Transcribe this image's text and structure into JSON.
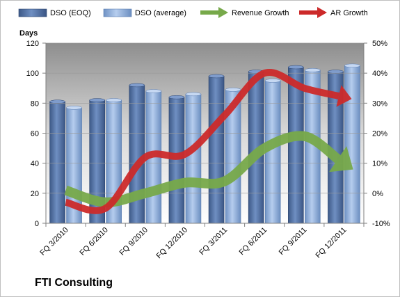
{
  "company": "FTI Consulting",
  "chart_data": {
    "type": "bar",
    "left_axis_title": "Days",
    "categories": [
      "FQ 3/2010",
      "FQ 6/2010",
      "FQ 9/2010",
      "FQ 12/2010",
      "FQ 3/2011",
      "FQ 6/2011",
      "FQ 9/2011",
      "FQ 12/2011"
    ],
    "y_left": {
      "min": 0,
      "max": 120,
      "step": 20,
      "ticks": [
        "0",
        "20",
        "40",
        "60",
        "80",
        "100",
        "120"
      ]
    },
    "y_right": {
      "min": -0.1,
      "max": 0.5,
      "step": 0.1,
      "ticks": [
        "-10%",
        "0%",
        "10%",
        "20%",
        "30%",
        "40%",
        "50%"
      ]
    },
    "legend_position": "top",
    "series": [
      {
        "name": "DSO (EOQ)",
        "kind": "bar",
        "axis": "left",
        "color": "#4f6fa3",
        "values": [
          81,
          82,
          92,
          84,
          98,
          101,
          104,
          101
        ]
      },
      {
        "name": "DSO (average)",
        "kind": "bar",
        "axis": "left",
        "color": "#8fb0dc",
        "values": [
          77,
          82,
          88,
          86,
          89,
          95,
          102,
          105
        ]
      },
      {
        "name": "Revenue Growth",
        "kind": "arrow-line",
        "axis": "right",
        "color": "#77a94a",
        "values": [
          0.01,
          -0.03,
          0.0,
          0.035,
          0.04,
          0.15,
          0.19,
          0.1
        ]
      },
      {
        "name": "AR Growth",
        "kind": "arrow-line",
        "axis": "right",
        "color": "#cc2a2a",
        "values": [
          -0.03,
          -0.05,
          0.12,
          0.13,
          0.26,
          0.4,
          0.35,
          0.32
        ]
      }
    ]
  }
}
